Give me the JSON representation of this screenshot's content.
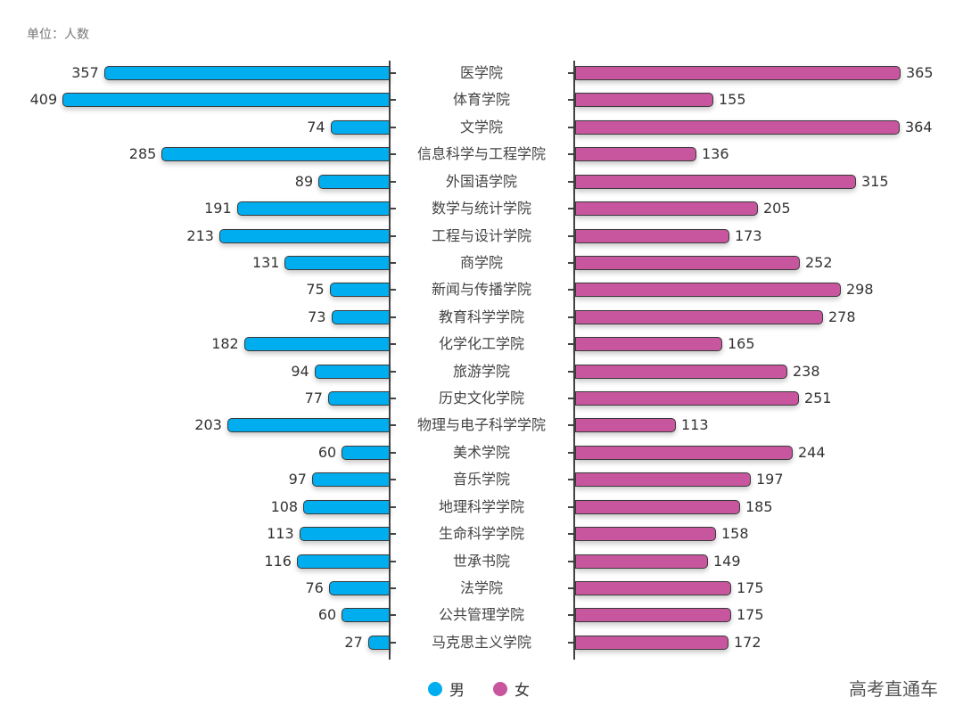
{
  "unit_label": "单位：人数",
  "legend": {
    "male": {
      "label": "男",
      "color": "#00aeef"
    },
    "female": {
      "label": "女",
      "color": "#c8569f"
    }
  },
  "watermark": "高考直通车",
  "chart_data": {
    "type": "bar",
    "orientation": "horizontal-butterfly",
    "title": "",
    "unit": "人数",
    "categories": [
      "医学院",
      "体育学院",
      "文学院",
      "信息科学与工程学院",
      "外国语学院",
      "数学与统计学院",
      "工程与设计学院",
      "商学院",
      "新闻与传播学院",
      "教育科学学院",
      "化学化工学院",
      "旅游学院",
      "历史文化学院",
      "物理与电子科学学院",
      "美术学院",
      "音乐学院",
      "地理科学学院",
      "生命科学学院",
      "世承书院",
      "法学院",
      "公共管理学院",
      "马克思主义学院"
    ],
    "series": [
      {
        "name": "男",
        "color": "#00aeef",
        "values": [
          357,
          409,
          74,
          285,
          89,
          191,
          213,
          131,
          75,
          73,
          182,
          94,
          77,
          203,
          60,
          97,
          108,
          113,
          116,
          76,
          60,
          27
        ]
      },
      {
        "name": "女",
        "color": "#c8569f",
        "values": [
          365,
          155,
          364,
          136,
          315,
          205,
          173,
          252,
          298,
          278,
          165,
          238,
          251,
          113,
          244,
          197,
          185,
          158,
          149,
          175,
          175,
          172
        ]
      }
    ],
    "legend_position": "bottom",
    "grid": false
  }
}
